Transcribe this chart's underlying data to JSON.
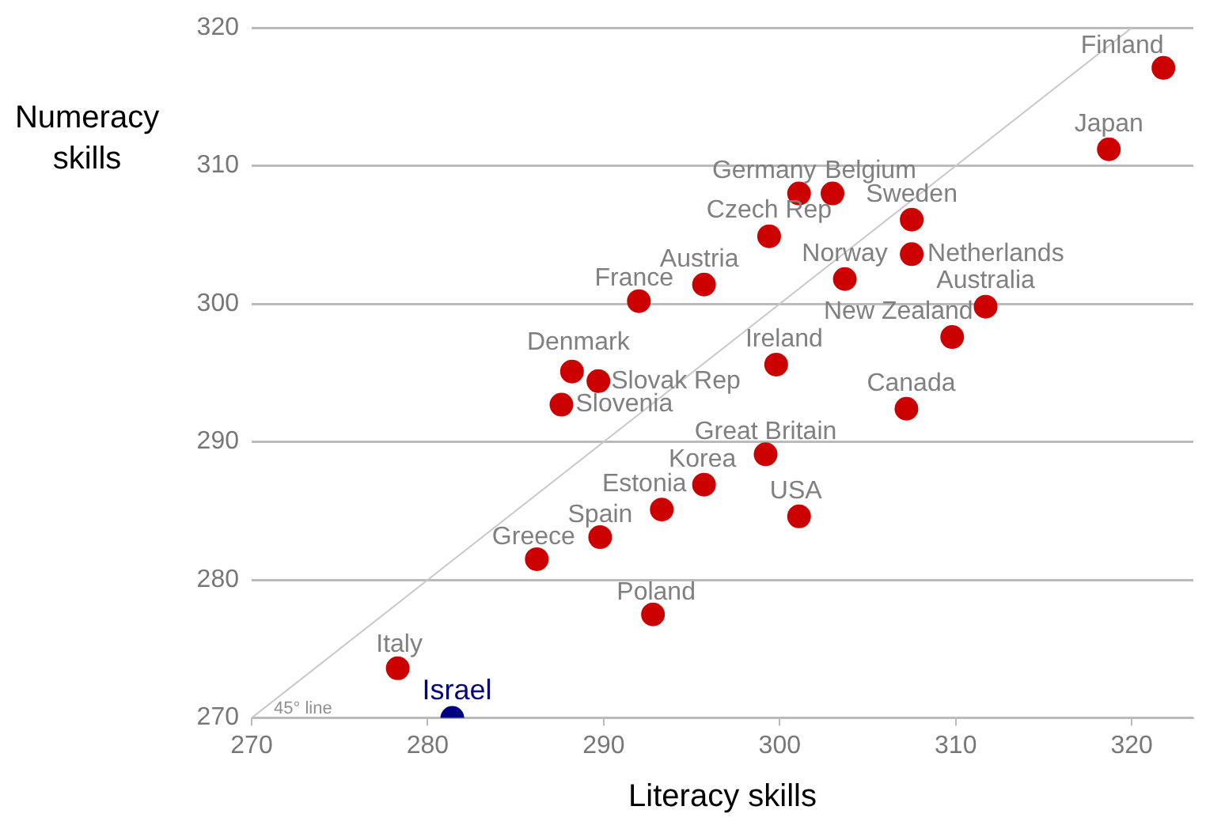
{
  "chart_data": {
    "type": "scatter",
    "xlabel": "Literacy skills",
    "ylabel": "Numeracy skills",
    "xlim": [
      270,
      323.5
    ],
    "ylim": [
      270,
      320
    ],
    "xticks": [
      270,
      280,
      290,
      300,
      310,
      320
    ],
    "yticks": [
      270,
      280,
      290,
      300,
      310,
      320
    ],
    "grid": "y",
    "legend": false,
    "series": [
      {
        "type": "scatter",
        "marker": "circle",
        "x": [
          321.8,
          318.7,
          301.1,
          303.0,
          307.5,
          299.4,
          307.5,
          303.7,
          295.7,
          292.0,
          311.7,
          309.8,
          299.8,
          288.2,
          289.7,
          287.6,
          307.2,
          299.2,
          295.7,
          293.3,
          301.1,
          289.8,
          286.2,
          292.8,
          278.3,
          281.4
        ],
        "values": [
          317.1,
          311.2,
          308.0,
          308.0,
          306.1,
          304.9,
          303.6,
          301.8,
          301.4,
          300.2,
          299.8,
          297.6,
          295.6,
          295.1,
          294.4,
          292.7,
          292.4,
          289.1,
          286.9,
          285.1,
          284.6,
          283.1,
          281.5,
          277.5,
          273.6,
          270.0
        ],
        "colors": [
          "#cc0000",
          "#cc0000",
          "#cc0000",
          "#cc0000",
          "#cc0000",
          "#cc0000",
          "#cc0000",
          "#cc0000",
          "#cc0000",
          "#cc0000",
          "#cc0000",
          "#cc0000",
          "#cc0000",
          "#cc0000",
          "#cc0000",
          "#cc0000",
          "#cc0000",
          "#cc0000",
          "#cc0000",
          "#cc0000",
          "#cc0000",
          "#cc0000",
          "#cc0000",
          "#cc0000",
          "#cc0000",
          "#000080"
        ]
      },
      {
        "type": "line",
        "name": "45° line",
        "x": [
          270,
          320
        ],
        "values": [
          270,
          320
        ],
        "color": "#c8c8c8",
        "line_style": "solid"
      }
    ],
    "annotations": [
      {
        "text": "Finland",
        "x": 321.8,
        "y": 317.1
      },
      {
        "text": "Japan",
        "x": 318.7,
        "y": 311.2
      },
      {
        "text": "Germany",
        "x": 301.1,
        "y": 308.0
      },
      {
        "text": "Belgium",
        "x": 303.0,
        "y": 308.0
      },
      {
        "text": "Sweden",
        "x": 307.5,
        "y": 306.1
      },
      {
        "text": "Czech Rep",
        "x": 299.4,
        "y": 304.9
      },
      {
        "text": "Netherlands",
        "x": 307.5,
        "y": 303.6
      },
      {
        "text": "Norway",
        "x": 303.7,
        "y": 301.8
      },
      {
        "text": "Austria",
        "x": 295.7,
        "y": 301.4
      },
      {
        "text": "France",
        "x": 292.0,
        "y": 300.2
      },
      {
        "text": "Australia",
        "x": 311.7,
        "y": 299.8
      },
      {
        "text": "New Zealand",
        "x": 309.8,
        "y": 297.6
      },
      {
        "text": "Ireland",
        "x": 299.8,
        "y": 295.6
      },
      {
        "text": "Denmark",
        "x": 288.2,
        "y": 295.1
      },
      {
        "text": "Slovak Rep",
        "x": 289.7,
        "y": 294.4
      },
      {
        "text": "Slovenia",
        "x": 287.6,
        "y": 292.7
      },
      {
        "text": "Canada",
        "x": 307.2,
        "y": 292.4
      },
      {
        "text": "Great Britain",
        "x": 299.2,
        "y": 289.1
      },
      {
        "text": "Korea",
        "x": 295.7,
        "y": 286.9
      },
      {
        "text": "Estonia",
        "x": 293.3,
        "y": 285.1
      },
      {
        "text": "USA",
        "x": 301.1,
        "y": 284.6
      },
      {
        "text": "Spain",
        "x": 289.8,
        "y": 283.1
      },
      {
        "text": "Greece",
        "x": 286.2,
        "y": 281.5
      },
      {
        "text": "Poland",
        "x": 292.8,
        "y": 277.5
      },
      {
        "text": "Italy",
        "x": 278.3,
        "y": 273.6
      },
      {
        "text": "Israel",
        "x": 281.4,
        "y": 270.0
      }
    ]
  }
}
